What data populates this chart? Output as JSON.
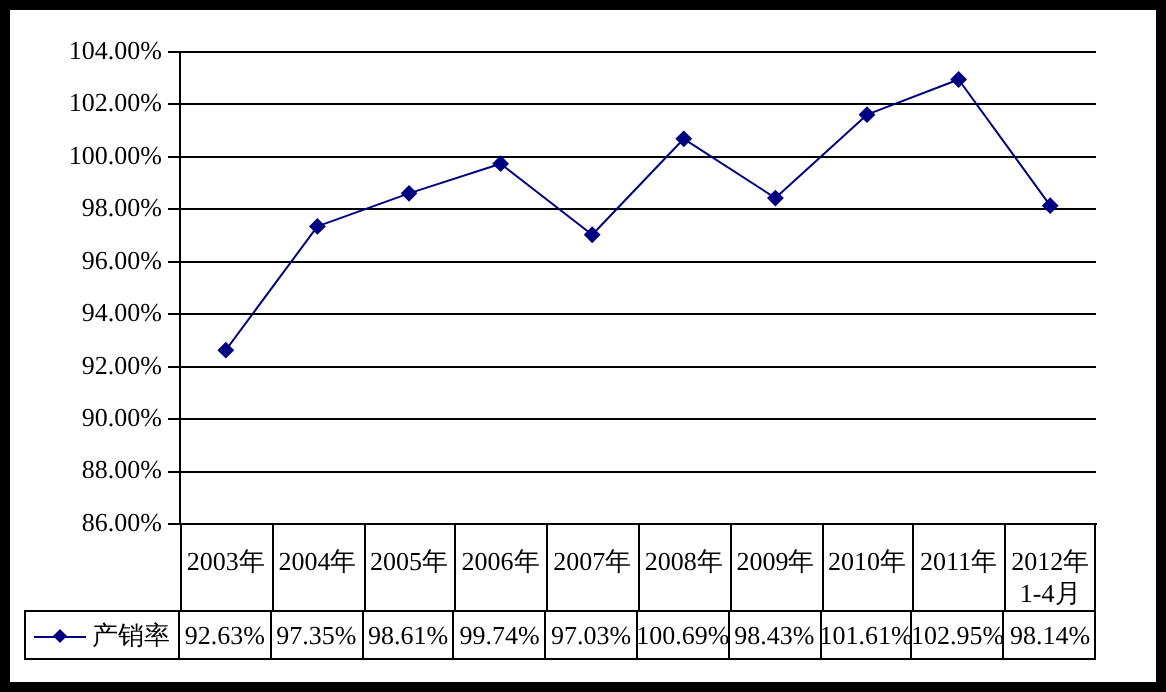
{
  "chart_data": {
    "type": "line",
    "categories": [
      "2003年",
      "2004年",
      "2005年",
      "2006年",
      "2007年",
      "2008年",
      "2009年",
      "2010年",
      "2011年",
      "2012年\n1-4月"
    ],
    "series": [
      {
        "name": "产销率",
        "color": "#000080",
        "values": [
          92.63,
          97.35,
          98.61,
          99.74,
          97.03,
          100.69,
          98.43,
          101.61,
          102.95,
          98.14
        ],
        "value_labels": [
          "92.63%",
          "97.35%",
          "98.61%",
          "99.74%",
          "97.03%",
          "100.69%",
          "98.43%",
          "101.61%",
          "102.95%",
          "98.14%"
        ]
      }
    ],
    "ylim": [
      86,
      104
    ],
    "yticks": [
      {
        "value": 86,
        "label": "86.00%"
      },
      {
        "value": 88,
        "label": "88.00%"
      },
      {
        "value": 90,
        "label": "90.00%"
      },
      {
        "value": 92,
        "label": "92.00%"
      },
      {
        "value": 94,
        "label": "94.00%"
      },
      {
        "value": 96,
        "label": "96.00%"
      },
      {
        "value": 98,
        "label": "98.00%"
      },
      {
        "value": 100,
        "label": "100.00%"
      },
      {
        "value": 102,
        "label": "102.00%"
      },
      {
        "value": 104,
        "label": "104.00%"
      }
    ],
    "grid": "y",
    "legend": "bottom left",
    "marker": "diamond",
    "line_style": "solid"
  }
}
